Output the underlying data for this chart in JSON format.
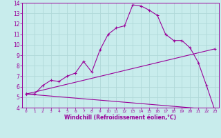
{
  "xlabel": "Windchill (Refroidissement éolien,°C)",
  "bg_color": "#c8ecec",
  "grid_color": "#b0d8d8",
  "line_color": "#990099",
  "xlim": [
    -0.5,
    23.5
  ],
  "ylim": [
    4,
    14
  ],
  "xticks": [
    0,
    1,
    2,
    3,
    4,
    5,
    6,
    7,
    8,
    9,
    10,
    11,
    12,
    13,
    14,
    15,
    16,
    17,
    18,
    19,
    20,
    21,
    22,
    23
  ],
  "yticks": [
    4,
    5,
    6,
    7,
    8,
    9,
    10,
    11,
    12,
    13,
    14
  ],
  "line1_x": [
    0,
    1,
    2,
    3,
    4,
    5,
    6,
    7,
    8,
    9,
    10,
    11,
    12,
    13,
    14,
    15,
    16,
    17,
    18,
    19,
    20,
    21,
    22,
    23
  ],
  "line1_y": [
    5.3,
    5.3,
    6.1,
    6.6,
    6.5,
    7.0,
    7.3,
    8.4,
    7.4,
    9.5,
    11.0,
    11.6,
    11.8,
    13.8,
    13.7,
    13.3,
    12.8,
    11.0,
    10.4,
    10.4,
    9.7,
    8.3,
    6.1,
    3.8
  ],
  "line2_x": [
    0,
    23
  ],
  "line2_y": [
    5.3,
    9.6
  ],
  "line3_x": [
    0,
    23
  ],
  "line3_y": [
    5.3,
    3.8
  ],
  "xlabel_fontsize": 5.5,
  "tick_fontsize_x": 4.2,
  "tick_fontsize_y": 5.5
}
